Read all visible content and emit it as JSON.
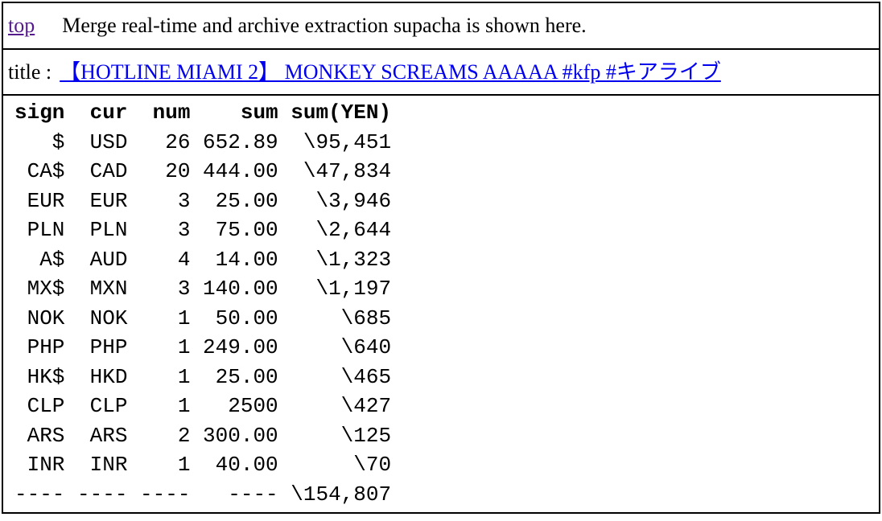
{
  "header": {
    "top_link": "top",
    "description": "Merge real-time and archive extraction supacha is shown here."
  },
  "title_row": {
    "label": "title :",
    "link_text": "【HOTLINE MIAMI 2】 MONKEY SCREAMS AAAAA #kfp #キアライブ"
  },
  "currency_table": {
    "columns": [
      "sign",
      "cur",
      "num",
      "sum",
      "sum(YEN)"
    ],
    "header_line": "sign  cur  num    sum sum(YEN)",
    "body_lines": [
      "   $  USD   26 652.89  \\95,451",
      " CA$  CAD   20 444.00  \\47,834",
      " EUR  EUR    3  25.00   \\3,946",
      " PLN  PLN    3  75.00   \\2,644",
      "  A$  AUD    4  14.00   \\1,323",
      " MX$  MXN    3 140.00   \\1,197",
      " NOK  NOK    1  50.00     \\685",
      " PHP  PHP    1 249.00     \\640",
      " HK$  HKD    1  25.00     \\465",
      " CLP  CLP    1   2500     \\427",
      " ARS  ARS    2 300.00     \\125",
      " INR  INR    1  40.00      \\70",
      "---- ---- ----   ---- \\154,807"
    ],
    "rows": [
      {
        "sign": "$",
        "cur": "USD",
        "num": 26,
        "sum": "652.89",
        "sum_yen": "\\95,451"
      },
      {
        "sign": "CA$",
        "cur": "CAD",
        "num": 20,
        "sum": "444.00",
        "sum_yen": "\\47,834"
      },
      {
        "sign": "EUR",
        "cur": "EUR",
        "num": 3,
        "sum": "25.00",
        "sum_yen": "\\3,946"
      },
      {
        "sign": "PLN",
        "cur": "PLN",
        "num": 3,
        "sum": "75.00",
        "sum_yen": "\\2,644"
      },
      {
        "sign": "A$",
        "cur": "AUD",
        "num": 4,
        "sum": "14.00",
        "sum_yen": "\\1,323"
      },
      {
        "sign": "MX$",
        "cur": "MXN",
        "num": 3,
        "sum": "140.00",
        "sum_yen": "\\1,197"
      },
      {
        "sign": "NOK",
        "cur": "NOK",
        "num": 1,
        "sum": "50.00",
        "sum_yen": "\\685"
      },
      {
        "sign": "PHP",
        "cur": "PHP",
        "num": 1,
        "sum": "249.00",
        "sum_yen": "\\640"
      },
      {
        "sign": "HK$",
        "cur": "HKD",
        "num": 1,
        "sum": "25.00",
        "sum_yen": "\\465"
      },
      {
        "sign": "CLP",
        "cur": "CLP",
        "num": 1,
        "sum": "2500",
        "sum_yen": "\\427"
      },
      {
        "sign": "ARS",
        "cur": "ARS",
        "num": 2,
        "sum": "300.00",
        "sum_yen": "\\125"
      },
      {
        "sign": "INR",
        "cur": "INR",
        "num": 1,
        "sum": "40.00",
        "sum_yen": "\\70"
      }
    ],
    "total_yen": "\\154,807"
  },
  "colors": {
    "background": "#FFFFFF",
    "text": "#000000",
    "border": "#000000",
    "link_blue": "#0000EE",
    "link_visited_purple": "#551A8B"
  }
}
